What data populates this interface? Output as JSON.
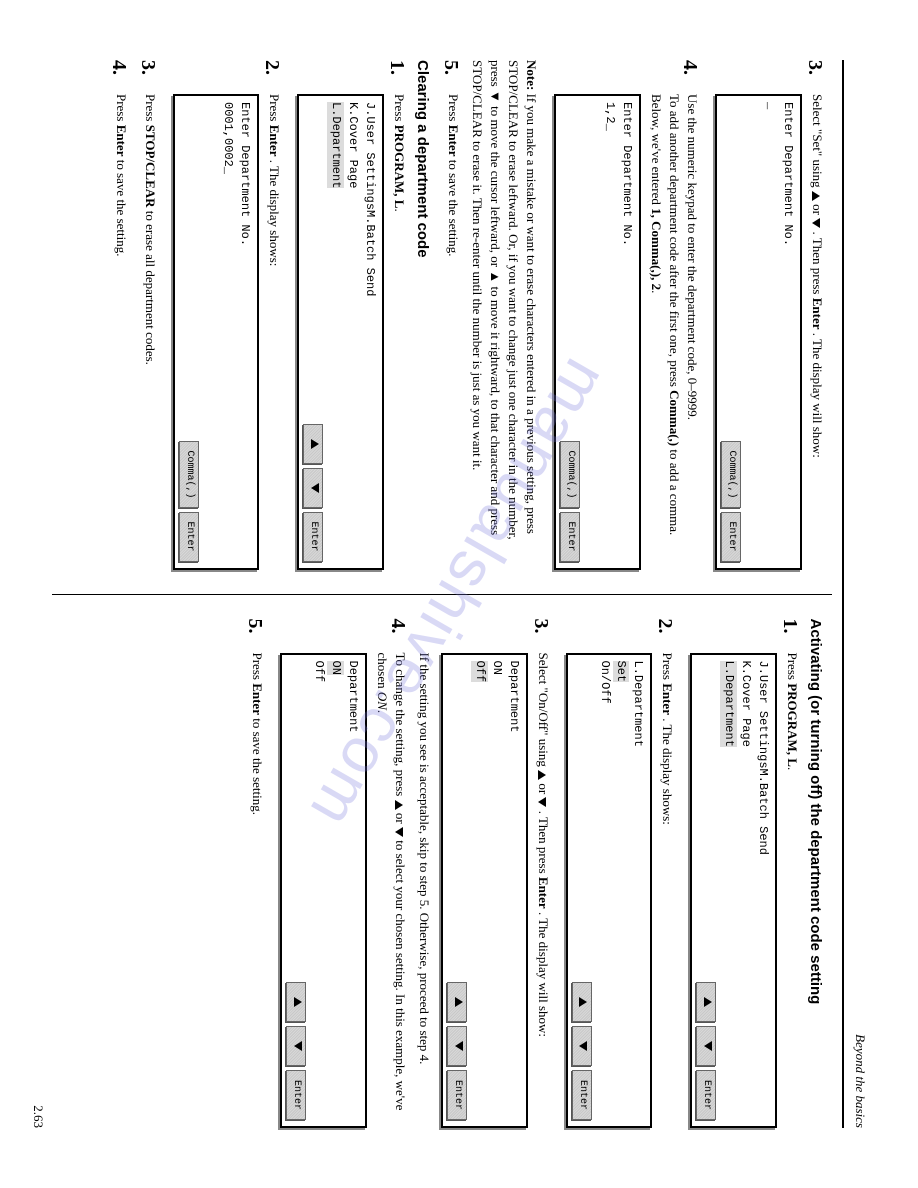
{
  "header": {
    "section": "Beyond the basics"
  },
  "watermark": "manualshive.com",
  "page_number": "2.63",
  "left": {
    "step3": {
      "text_a": "Select \"Set\" using ",
      "text_b": " or ",
      "text_c": ". Then press ",
      "enter": "Enter",
      "text_d": ". The display will show:",
      "display": {
        "l1": "Enter Department No.",
        "l2": "_",
        "btn1": "Comma(,)",
        "btn2": "Enter"
      }
    },
    "step4": {
      "p1": "Use the numeric keypad to enter the department code, 0–9999.",
      "p2a": "To add another department code after the first one, press ",
      "p2b": "Comma(,)",
      "p2c": " to add a comma. Below, we've entered ",
      "p2d": "1, Comma(,), 2",
      "display": {
        "l1": "Enter Department No.",
        "l2": "1,2_",
        "btn1": "Comma(,)",
        "btn2": "Enter"
      }
    },
    "note": {
      "label": "Note:",
      "body": " If you make a mistake or want to erase characters entered in a previous setting, press STOP/CLEAR to erase leftward. Or, if you want to change just one character in the number, press ▼ to move the cursor leftward, or ▲ to move it rightward, to that character and press STOP/CLEAR to erase it. Then re-enter until the number is just as you want it."
    },
    "step5": {
      "a": "Press ",
      "enter": "Enter",
      "b": " to save the setting."
    },
    "clearing": {
      "title": "Clearing a department code",
      "s1": {
        "a": "Press ",
        "prog": "PROGRAM, L",
        "display": {
          "l1": "J.User SettingsM.Batch Send",
          "l2": "K.Cover Page",
          "l3": "L.Department",
          "btns": "arrows+enter"
        }
      },
      "s2": {
        "a": "Press ",
        "enter": "Enter",
        "b": ". The display shows:",
        "display": {
          "l1": "Enter Department No.",
          "l2": "0001,0002_",
          "btn1": "Comma(,)",
          "btn2": "Enter"
        }
      },
      "s3": {
        "a": "Press ",
        "sc": "STOP/CLEAR",
        "b": " to erase all department codes."
      },
      "s4": {
        "a": "Press ",
        "enter": "Enter",
        "b": " to save the setting."
      }
    }
  },
  "right": {
    "title": "Activating (or turning off) the department code setting",
    "s1": {
      "a": "Press ",
      "prog": "PROGRAM, L",
      "display": {
        "l1": "J.User SettingsM.Batch Send",
        "l2": "K.Cover Page",
        "l3": "L.Department"
      }
    },
    "s2": {
      "a": "Press ",
      "enter": "Enter",
      "b": ". The display shows:",
      "display": {
        "l1": "L.Department",
        "l2": "Set",
        "l3": "On/Off"
      }
    },
    "s3": {
      "a": "Select \"On/Off\" using ",
      "b": " or ",
      "c": ". Then press ",
      "enter": "Enter",
      "d": ". The display will show:",
      "display": {
        "l1": "Department",
        "l2": "ON",
        "l3": "Off"
      },
      "tail": "If the setting you see is acceptable, skip to step 5. Otherwise, proceed to step 4."
    },
    "s4": {
      "a": "To change the setting, press ",
      "b": " or ",
      "c": " to select your chosen setting. In this example, we've chosen ",
      "on": "ON",
      "display": {
        "l1": "Department",
        "l2": "ON",
        "l3": "Off"
      }
    },
    "s5": {
      "a": "Press ",
      "enter": "Enter",
      "b": " to save the setting."
    }
  }
}
